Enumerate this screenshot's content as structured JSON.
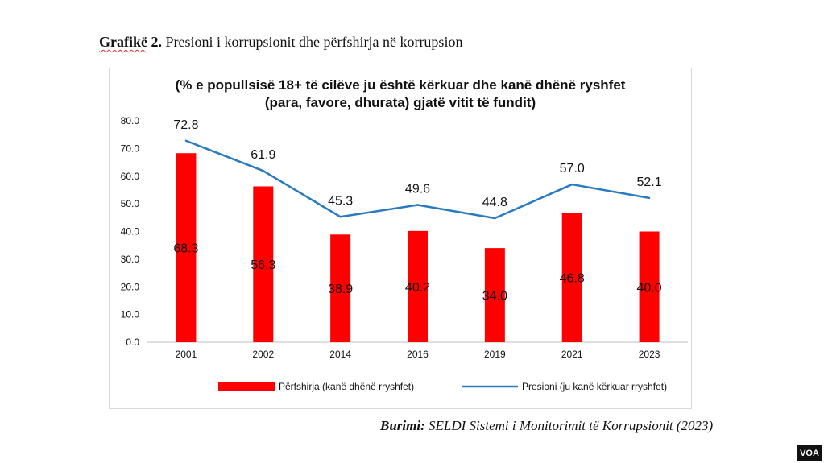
{
  "heading": {
    "lead": "Grafikë",
    "lead_suffix": " 2.",
    "text": "Presioni i korrupsionit dhe përfshirja në korrupsion"
  },
  "source": {
    "label": "Burimi:",
    "text": "SELDI Sistemi i Monitorimit të Korrupsionit (2023)"
  },
  "watermark": "VOA",
  "chart_data": {
    "type": "bar",
    "title_line1": "(% e popullsisë 18+ të cilëve ju është kërkuar dhe kanë dhënë ryshfet",
    "title_line2": "(para, favore, dhurata) gjatë vitit të fundit)",
    "categories": [
      "2001",
      "2002",
      "2014",
      "2016",
      "2019",
      "2021",
      "2023"
    ],
    "ylim": [
      0,
      80
    ],
    "yticks": [
      "0.0",
      "10.0",
      "20.0",
      "30.0",
      "40.0",
      "50.0",
      "60.0",
      "70.0",
      "80.0"
    ],
    "series": [
      {
        "name": "Përfshirja (kanë dhënë rryshfet)",
        "type": "bar",
        "color": "#ff0000",
        "values": [
          68.3,
          56.3,
          38.9,
          40.2,
          34.0,
          46.8,
          40.0
        ],
        "labels": [
          "68.3",
          "56.3",
          "38.9",
          "40.2",
          "34.0",
          "46.8",
          "40.0"
        ]
      },
      {
        "name": "Presioni (ju kanë kërkuar rryshfet)",
        "type": "line",
        "color": "#2a7ac0",
        "values": [
          72.8,
          61.9,
          45.3,
          49.6,
          44.8,
          57.0,
          52.1
        ],
        "labels": [
          "72.8",
          "61.9",
          "45.3",
          "49.6",
          "44.8",
          "57.0",
          "52.1"
        ]
      }
    ],
    "legend_position": "bottom"
  }
}
